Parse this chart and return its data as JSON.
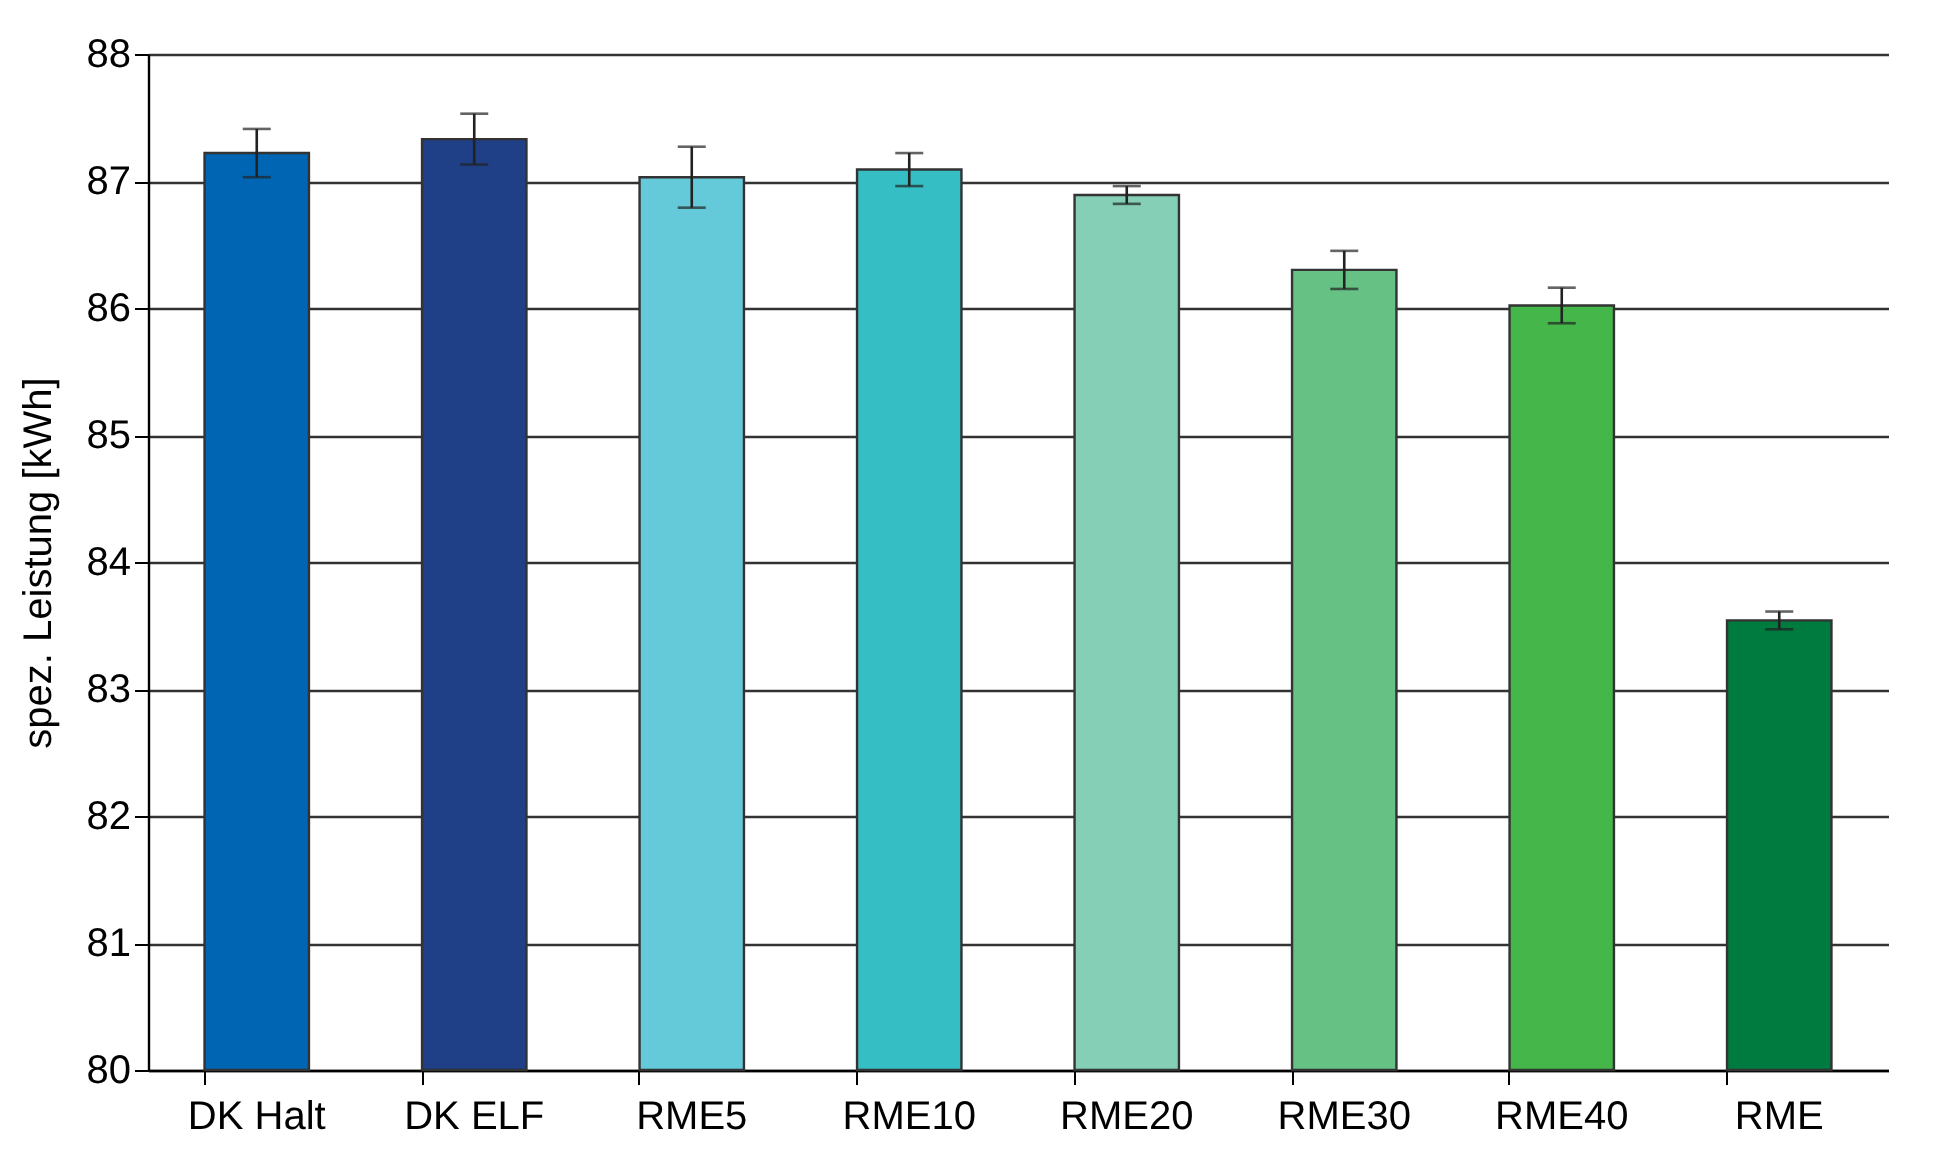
{
  "chart_data": {
    "type": "bar",
    "ylabel": "spez. Leistung [kWh]",
    "categories": [
      "DK Halt",
      "DK ELF",
      "RME5",
      "RME10",
      "RME20",
      "RME30",
      "RME40",
      "RME"
    ],
    "values": [
      87.22,
      87.33,
      87.03,
      87.09,
      86.89,
      86.3,
      86.02,
      83.54
    ],
    "errors": [
      0.19,
      0.2,
      0.24,
      0.13,
      0.07,
      0.15,
      0.14,
      0.07
    ],
    "colors": [
      "#0066b3",
      "#1f3f87",
      "#64c9d9",
      "#35bec4",
      "#84cfb5",
      "#66c184",
      "#45b74a",
      "#007b40"
    ],
    "ylim": [
      80,
      88
    ],
    "yticks": [
      80,
      81,
      82,
      83,
      84,
      85,
      86,
      87,
      88
    ],
    "grid": "y"
  }
}
